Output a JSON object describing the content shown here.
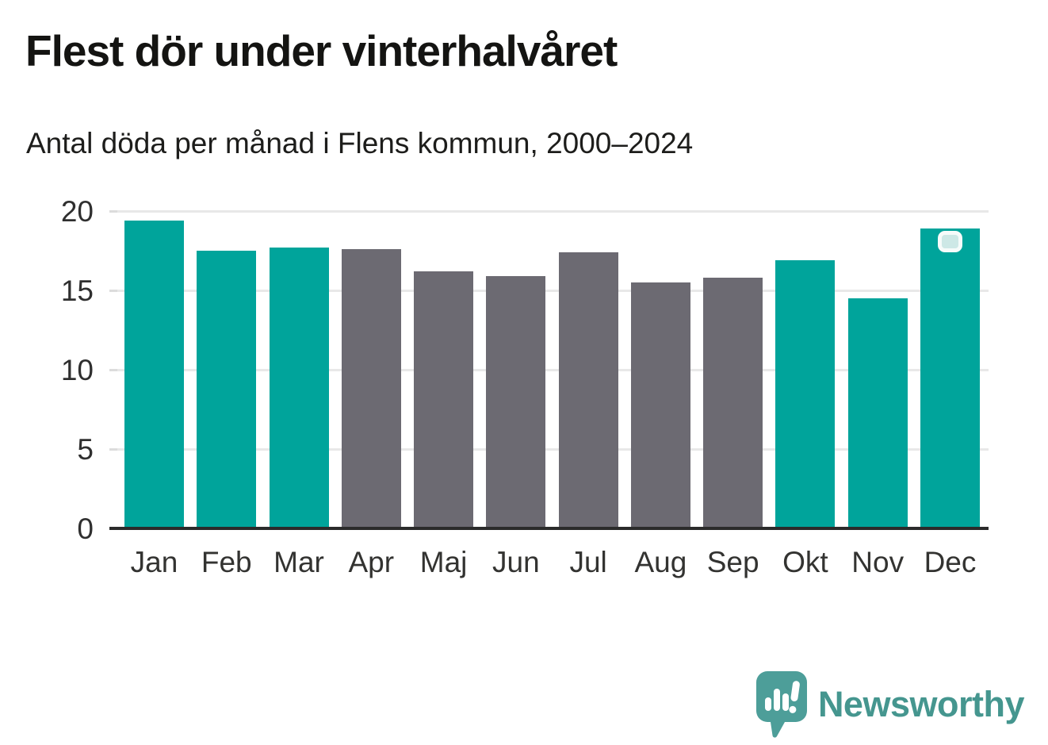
{
  "header": {
    "title": "Flest dör under vinterhalvåret",
    "subtitle": "Antal döda per månad i Flens kommun, 2000–2024"
  },
  "chart_data": {
    "type": "bar",
    "title": "Flest dör under vinterhalvåret",
    "subtitle": "Antal döda per månad i Flens kommun, 2000–2024",
    "categories": [
      "Jan",
      "Feb",
      "Mar",
      "Apr",
      "Maj",
      "Jun",
      "Jul",
      "Aug",
      "Sep",
      "Okt",
      "Nov",
      "Dec"
    ],
    "values": [
      19.4,
      17.5,
      17.7,
      17.6,
      16.2,
      15.9,
      17.4,
      15.5,
      15.8,
      16.9,
      14.5,
      18.9
    ],
    "bar_colors": [
      "#00a49b",
      "#00a49b",
      "#00a49b",
      "#6c6a72",
      "#6c6a72",
      "#6c6a72",
      "#6c6a72",
      "#6c6a72",
      "#6c6a72",
      "#00a49b",
      "#00a49b",
      "#00a49b"
    ],
    "winter_color": "#00a49b",
    "summer_color": "#6c6a72",
    "xlabel": "",
    "ylabel": "",
    "ylim": [
      0,
      20
    ],
    "yticks": [
      0,
      5,
      10,
      15,
      20
    ],
    "grid": "horizontal",
    "legend": "none",
    "marker": {
      "category": "Dec",
      "shape": "rounded-square",
      "fill": "#cde8e6",
      "border": "#f6fbfa"
    }
  },
  "footer": {
    "brand": "Newsworthy",
    "brand_color": "#45968f",
    "logo_icon": "newsworthy-speech-bubble-chart-icon"
  }
}
